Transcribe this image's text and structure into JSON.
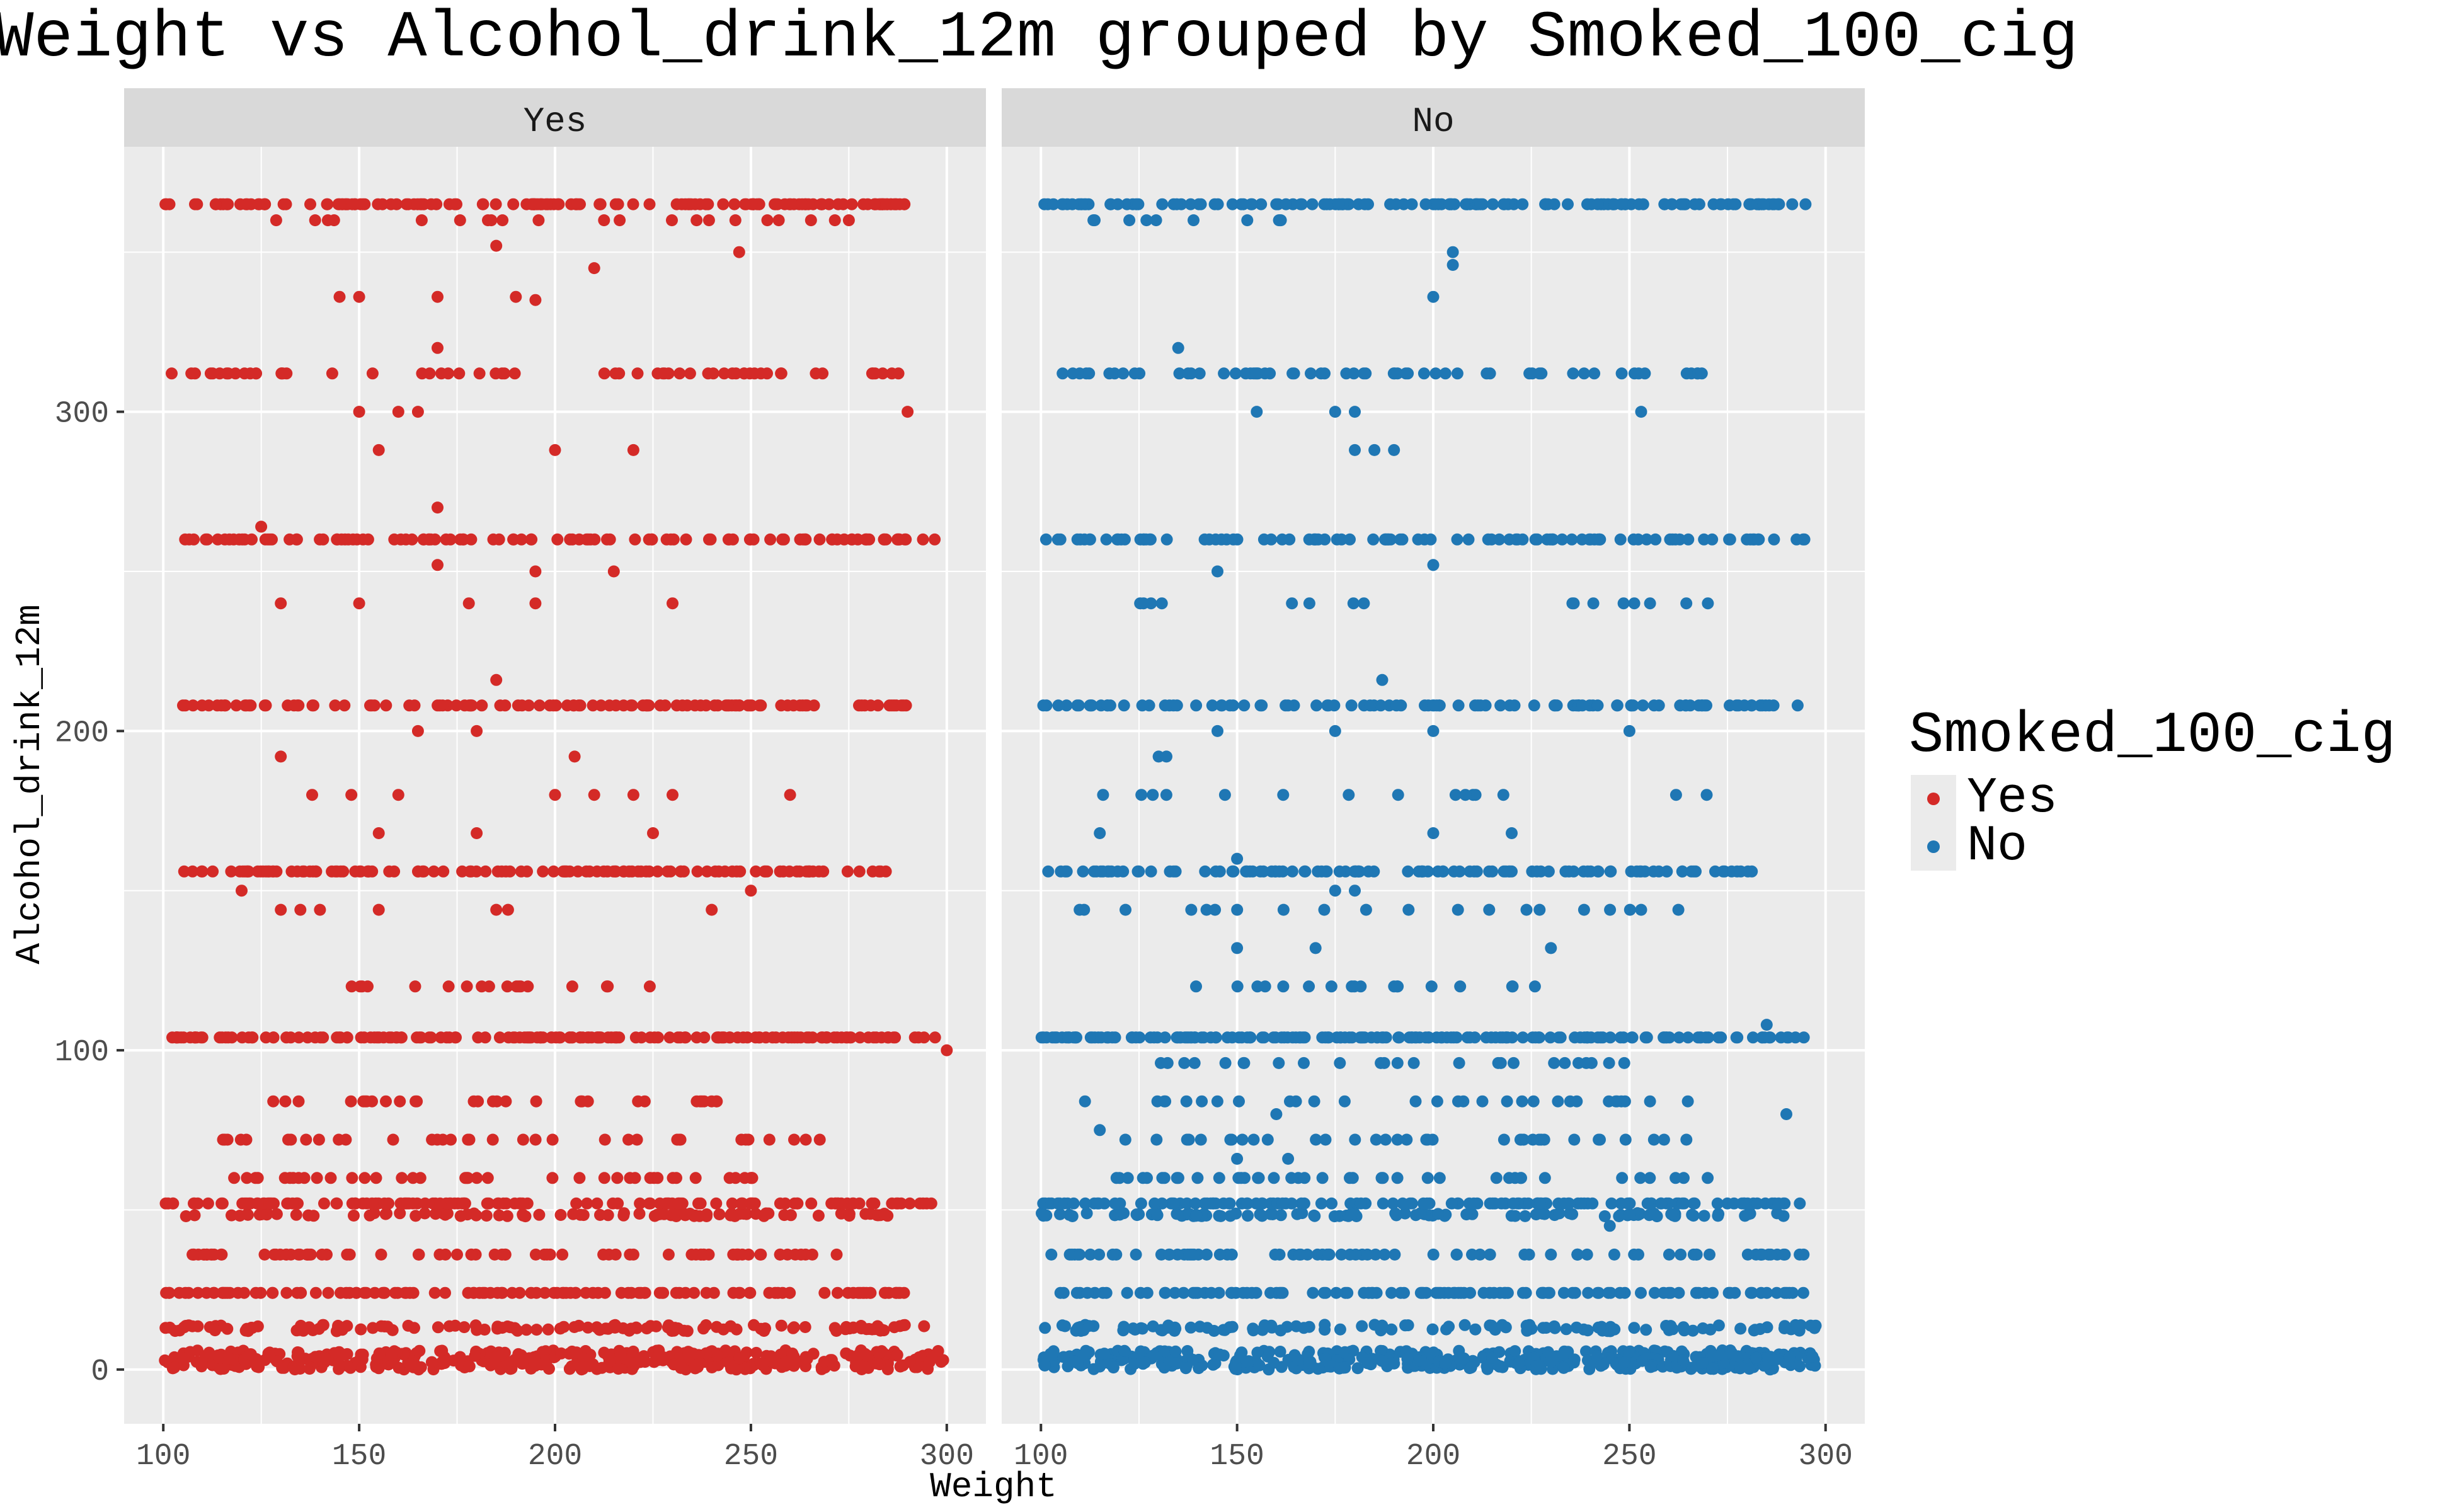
{
  "chart_data": {
    "type": "scatter",
    "title": "Weight vs Alcohol_drink_12m grouped by Smoked_100_cig",
    "xlabel": "Weight",
    "ylabel": "Alcohol_drink_12m",
    "xlim": [
      90,
      310
    ],
    "ylim": [
      -17,
      383
    ],
    "x_ticks": [
      100,
      150,
      200,
      250,
      300
    ],
    "y_ticks": [
      0,
      100,
      200,
      300
    ],
    "x_tick_labels": [
      "100",
      "150",
      "200",
      "250",
      "300"
    ],
    "y_tick_labels": [
      "0",
      "100",
      "200",
      "300"
    ],
    "grid": true,
    "legend": {
      "title": "Smoked_100_cig",
      "position": "right",
      "entries": [
        {
          "label": "Yes",
          "color": "#d42a27"
        },
        {
          "label": "No",
          "color": "#1f77b4"
        }
      ]
    },
    "facets": [
      {
        "label": "Yes",
        "color": "#d42a27",
        "bands": [
          {
            "y": 0,
            "x_range": [
              100,
              300
            ],
            "count": 420,
            "jitter": 6
          },
          {
            "y": 12,
            "x_range": [
              100,
              295
            ],
            "count": 130,
            "jitter": 2
          },
          {
            "y": 24,
            "x_range": [
              100,
              295
            ],
            "count": 120,
            "jitter": 0
          },
          {
            "y": 36,
            "x_range": [
              105,
              275
            ],
            "count": 80,
            "jitter": 0
          },
          {
            "y": 48,
            "x_range": [
              105,
              285
            ],
            "count": 90,
            "jitter": 1
          },
          {
            "y": 52,
            "x_range": [
              100,
              297
            ],
            "count": 130,
            "jitter": 0
          },
          {
            "y": 60,
            "x_range": [
              115,
              255
            ],
            "count": 40,
            "jitter": 0
          },
          {
            "y": 72,
            "x_range": [
              115,
              275
            ],
            "count": 35,
            "jitter": 0
          },
          {
            "y": 84,
            "x_range": [
              115,
              245
            ],
            "count": 30,
            "jitter": 0
          },
          {
            "y": 104,
            "x_range": [
              100,
              297
            ],
            "count": 170,
            "jitter": 0
          },
          {
            "y": 120,
            "x_range": [
              140,
              240
            ],
            "count": 18,
            "jitter": 0
          },
          {
            "y": 156,
            "x_range": [
              105,
              285
            ],
            "count": 120,
            "jitter": 0
          },
          {
            "y": 208,
            "x_range": [
              105,
              290
            ],
            "count": 110,
            "jitter": 0
          },
          {
            "y": 260,
            "x_range": [
              105,
              297
            ],
            "count": 110,
            "jitter": 0
          },
          {
            "y": 312,
            "x_range": [
              100,
              290
            ],
            "count": 60,
            "jitter": 0
          },
          {
            "y": 365,
            "x_range": [
              100,
              290
            ],
            "count": 150,
            "jitter": 0
          },
          {
            "y": 360,
            "x_range": [
              125,
              275
            ],
            "count": 20,
            "jitter": 0
          }
        ],
        "points": [
          {
            "x": 300,
            "y": 100
          },
          {
            "x": 297,
            "y": 104
          },
          {
            "x": 290,
            "y": 300
          },
          {
            "x": 247,
            "y": 350
          },
          {
            "x": 185,
            "y": 352
          },
          {
            "x": 210,
            "y": 345
          },
          {
            "x": 145,
            "y": 336
          },
          {
            "x": 150,
            "y": 336
          },
          {
            "x": 170,
            "y": 336
          },
          {
            "x": 190,
            "y": 336
          },
          {
            "x": 195,
            "y": 335
          },
          {
            "x": 170,
            "y": 320
          },
          {
            "x": 170,
            "y": 270
          },
          {
            "x": 125,
            "y": 264
          },
          {
            "x": 170,
            "y": 252
          },
          {
            "x": 215,
            "y": 250
          },
          {
            "x": 195,
            "y": 250
          },
          {
            "x": 185,
            "y": 216
          },
          {
            "x": 165,
            "y": 200
          },
          {
            "x": 180,
            "y": 200
          },
          {
            "x": 130,
            "y": 192
          },
          {
            "x": 205,
            "y": 192
          },
          {
            "x": 260,
            "y": 180
          },
          {
            "x": 120,
            "y": 150
          },
          {
            "x": 250,
            "y": 150
          },
          {
            "x": 155,
            "y": 168
          },
          {
            "x": 180,
            "y": 168
          },
          {
            "x": 225,
            "y": 168
          },
          {
            "x": 150,
            "y": 300
          },
          {
            "x": 160,
            "y": 300
          },
          {
            "x": 165,
            "y": 300
          },
          {
            "x": 200,
            "y": 288
          },
          {
            "x": 220,
            "y": 288
          },
          {
            "x": 155,
            "y": 288
          },
          {
            "x": 240,
            "y": 144
          },
          {
            "x": 130,
            "y": 144
          },
          {
            "x": 135,
            "y": 144
          },
          {
            "x": 140,
            "y": 144
          },
          {
            "x": 155,
            "y": 144
          },
          {
            "x": 185,
            "y": 144
          },
          {
            "x": 188,
            "y": 144
          },
          {
            "x": 130,
            "y": 240
          },
          {
            "x": 150,
            "y": 240
          },
          {
            "x": 178,
            "y": 240
          },
          {
            "x": 195,
            "y": 240
          },
          {
            "x": 230,
            "y": 240
          },
          {
            "x": 275,
            "y": 360
          },
          {
            "x": 210,
            "y": 180
          },
          {
            "x": 220,
            "y": 180
          },
          {
            "x": 230,
            "y": 180
          },
          {
            "x": 200,
            "y": 180
          },
          {
            "x": 148,
            "y": 180
          },
          {
            "x": 160,
            "y": 180
          },
          {
            "x": 138,
            "y": 180
          }
        ]
      },
      {
        "label": "No",
        "color": "#1f77b4",
        "bands": [
          {
            "y": 0,
            "x_range": [
              100,
              298
            ],
            "count": 430,
            "jitter": 6
          },
          {
            "y": 12,
            "x_range": [
              100,
              298
            ],
            "count": 120,
            "jitter": 2
          },
          {
            "y": 24,
            "x_range": [
              100,
              295
            ],
            "count": 110,
            "jitter": 0
          },
          {
            "y": 36,
            "x_range": [
              100,
              299
            ],
            "count": 80,
            "jitter": 0
          },
          {
            "y": 48,
            "x_range": [
              100,
              290
            ],
            "count": 100,
            "jitter": 1
          },
          {
            "y": 52,
            "x_range": [
              100,
              295
            ],
            "count": 130,
            "jitter": 0
          },
          {
            "y": 60,
            "x_range": [
              115,
              270
            ],
            "count": 40,
            "jitter": 0
          },
          {
            "y": 72,
            "x_range": [
              120,
              265
            ],
            "count": 35,
            "jitter": 0
          },
          {
            "y": 84,
            "x_range": [
              110,
              265
            ],
            "count": 30,
            "jitter": 0
          },
          {
            "y": 96,
            "x_range": [
              130,
              255
            ],
            "count": 25,
            "jitter": 0
          },
          {
            "y": 104,
            "x_range": [
              100,
              295
            ],
            "count": 170,
            "jitter": 0
          },
          {
            "y": 120,
            "x_range": [
              130,
              240
            ],
            "count": 18,
            "jitter": 0
          },
          {
            "y": 144,
            "x_range": [
              105,
              265
            ],
            "count": 20,
            "jitter": 0
          },
          {
            "y": 156,
            "x_range": [
              100,
              285
            ],
            "count": 110,
            "jitter": 0
          },
          {
            "y": 180,
            "x_range": [
              115,
              270
            ],
            "count": 15,
            "jitter": 0
          },
          {
            "y": 208,
            "x_range": [
              100,
              295
            ],
            "count": 100,
            "jitter": 0
          },
          {
            "y": 240,
            "x_range": [
              120,
              270
            ],
            "count": 15,
            "jitter": 0
          },
          {
            "y": 260,
            "x_range": [
              100,
              295
            ],
            "count": 100,
            "jitter": 0
          },
          {
            "y": 312,
            "x_range": [
              105,
              272
            ],
            "count": 60,
            "jitter": 0
          },
          {
            "y": 365,
            "x_range": [
              100,
              295
            ],
            "count": 140,
            "jitter": 0
          },
          {
            "y": 360,
            "x_range": [
              104,
              185
            ],
            "count": 10,
            "jitter": 0
          }
        ],
        "points": [
          {
            "x": 205,
            "y": 350
          },
          {
            "x": 205,
            "y": 346
          },
          {
            "x": 200,
            "y": 336
          },
          {
            "x": 135,
            "y": 320
          },
          {
            "x": 155,
            "y": 300
          },
          {
            "x": 175,
            "y": 300
          },
          {
            "x": 180,
            "y": 300
          },
          {
            "x": 253,
            "y": 300
          },
          {
            "x": 180,
            "y": 288
          },
          {
            "x": 185,
            "y": 288
          },
          {
            "x": 190,
            "y": 288
          },
          {
            "x": 200,
            "y": 252
          },
          {
            "x": 145,
            "y": 250
          },
          {
            "x": 187,
            "y": 216
          },
          {
            "x": 250,
            "y": 200
          },
          {
            "x": 145,
            "y": 200
          },
          {
            "x": 175,
            "y": 200
          },
          {
            "x": 200,
            "y": 200
          },
          {
            "x": 115,
            "y": 168
          },
          {
            "x": 200,
            "y": 168
          },
          {
            "x": 220,
            "y": 168
          },
          {
            "x": 150,
            "y": 160
          },
          {
            "x": 175,
            "y": 150
          },
          {
            "x": 180,
            "y": 150
          },
          {
            "x": 150,
            "y": 132
          },
          {
            "x": 170,
            "y": 132
          },
          {
            "x": 230,
            "y": 132
          },
          {
            "x": 290,
            "y": 80
          },
          {
            "x": 115,
            "y": 75
          },
          {
            "x": 285,
            "y": 108
          },
          {
            "x": 130,
            "y": 192
          },
          {
            "x": 132,
            "y": 192
          },
          {
            "x": 245,
            "y": 45
          },
          {
            "x": 160,
            "y": 80
          },
          {
            "x": 163,
            "y": 66
          },
          {
            "x": 150,
            "y": 66
          },
          {
            "x": 238,
            "y": 208
          },
          {
            "x": 270,
            "y": 240
          }
        ]
      }
    ]
  }
}
